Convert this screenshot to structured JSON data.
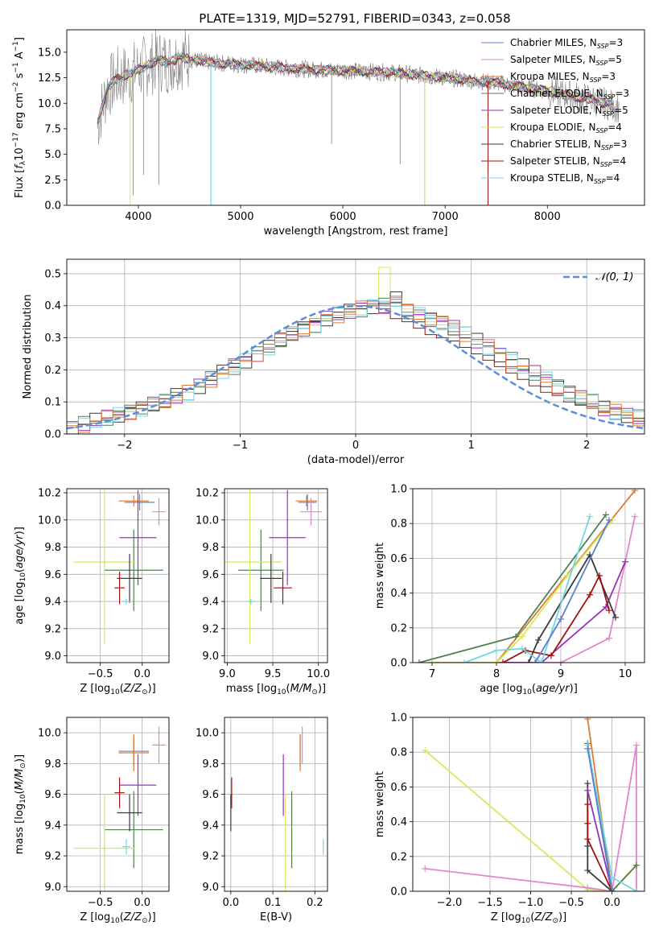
{
  "figure_title": "PLATE=1319, MJD=52791, FIBERID=0343, z=0.058",
  "colors": {
    "Chabrier MILES": "#5b7fd1",
    "Salpeter MILES": "#dd88cc",
    "Kroupa MILES": "#e07a2e",
    "Chabrier ELODIE": "#4f7f4f",
    "Salpeter ELODIE": "#9b30b8",
    "Kroupa ELODIE": "#d6e85a",
    "Chabrier STELIB": "#3a3a3a",
    "Salpeter STELIB": "#a01010",
    "Kroupa STELIB": "#6fd6e8",
    "spectrum": "#808080"
  },
  "chart_data": [
    {
      "type": "line",
      "title": "PLATE=1319, MJD=52791, FIBERID=0343, z=0.058",
      "xlabel": "wavelength [Angstrom, rest frame]",
      "ylabel": "Flux [f_λ 10^-17 erg cm^-2 s^-1 A^-1]",
      "xlim": [
        3300,
        8950
      ],
      "ylim": [
        0,
        17.2
      ],
      "xticks": [
        4000,
        5000,
        6000,
        7000,
        8000
      ],
      "yticks": [
        0.0,
        2.5,
        5.0,
        7.5,
        10.0,
        12.5,
        15.0
      ],
      "legend_position": "top-right",
      "legend": [
        {
          "name": "Chabrier MILES",
          "label": "Chabrier MILES, N",
          "sub": "SSP",
          "n": "=3"
        },
        {
          "name": "Salpeter MILES",
          "label": "Salpeter MILES, N",
          "sub": "SSP",
          "n": "=5"
        },
        {
          "name": "Kroupa MILES",
          "label": "Kroupa MILES, N",
          "sub": "SSP",
          "n": "=3"
        },
        {
          "name": "Chabrier ELODIE",
          "label": "Chabrier ELODIE, N",
          "sub": "SSP",
          "n": "=3"
        },
        {
          "name": "Salpeter ELODIE",
          "label": "Salpeter ELODIE, N",
          "sub": "SSP",
          "n": "=5"
        },
        {
          "name": "Kroupa ELODIE",
          "label": "Kroupa ELODIE, N",
          "sub": "SSP",
          "n": "=4"
        },
        {
          "name": "Chabrier STELIB",
          "label": "Chabrier STELIB, N",
          "sub": "SSP",
          "n": "=3"
        },
        {
          "name": "Salpeter STELIB",
          "label": "Salpeter STELIB, N",
          "sub": "SSP",
          "n": "=4"
        },
        {
          "name": "Kroupa STELIB",
          "label": "Kroupa STELIB, N",
          "sub": "SSP",
          "n": "=4"
        }
      ],
      "spectrum_envelope": {
        "x": [
          3600,
          3700,
          3800,
          3900,
          4000,
          4100,
          4200,
          4300,
          4400,
          4500,
          4700,
          5000,
          5500,
          6000,
          6500,
          7000,
          7500,
          8000,
          8500,
          8700
        ],
        "y": [
          8.0,
          11.5,
          12.5,
          12.8,
          13.3,
          13.8,
          14.2,
          14.0,
          14.5,
          14.3,
          14.0,
          13.8,
          13.4,
          13.2,
          13.0,
          12.5,
          12.0,
          11.2,
          10.2,
          9.6
        ]
      }
    },
    {
      "type": "histogram",
      "xlabel": "(data-model)/error",
      "ylabel": "Normed distribution",
      "xlim": [
        -2.5,
        2.5
      ],
      "ylim": [
        0,
        0.545
      ],
      "xticks": [
        -2,
        -1,
        0,
        1,
        2
      ],
      "yticks": [
        0.0,
        0.1,
        0.2,
        0.3,
        0.4,
        0.5
      ],
      "reference_curve": "𝒩(0, 1)",
      "bin_width": 0.1,
      "bins_from": -2.5,
      "series_values": {
        "Chabrier MILES": [
          0.02,
          0.03,
          0.04,
          0.05,
          0.06,
          0.07,
          0.08,
          0.09,
          0.1,
          0.12,
          0.13,
          0.15,
          0.17,
          0.19,
          0.21,
          0.23,
          0.25,
          0.27,
          0.29,
          0.31,
          0.33,
          0.34,
          0.36,
          0.37,
          0.38,
          0.39,
          0.4,
          0.4,
          0.42,
          0.38,
          0.37,
          0.36,
          0.35,
          0.33,
          0.31,
          0.29,
          0.27,
          0.25,
          0.23,
          0.21,
          0.19,
          0.17,
          0.15,
          0.13,
          0.11,
          0.1,
          0.08,
          0.07,
          0.06,
          0.05
        ],
        "Salpeter MILES": [
          0.02,
          0.03,
          0.04,
          0.05,
          0.06,
          0.07,
          0.08,
          0.09,
          0.11,
          0.12,
          0.14,
          0.15,
          0.17,
          0.19,
          0.21,
          0.23,
          0.25,
          0.27,
          0.29,
          0.31,
          0.33,
          0.35,
          0.36,
          0.38,
          0.39,
          0.39,
          0.4,
          0.41,
          0.43,
          0.4,
          0.38,
          0.37,
          0.36,
          0.34,
          0.31,
          0.29,
          0.27,
          0.25,
          0.23,
          0.21,
          0.19,
          0.17,
          0.15,
          0.13,
          0.11,
          0.1,
          0.08,
          0.07,
          0.06,
          0.05
        ],
        "Kroupa ELODIE": [
          0.02,
          0.03,
          0.04,
          0.05,
          0.06,
          0.07,
          0.08,
          0.1,
          0.11,
          0.12,
          0.13,
          0.15,
          0.17,
          0.19,
          0.22,
          0.24,
          0.26,
          0.28,
          0.3,
          0.32,
          0.33,
          0.34,
          0.36,
          0.37,
          0.38,
          0.39,
          0.41,
          0.52,
          0.4,
          0.39,
          0.37,
          0.35,
          0.34,
          0.33,
          0.32,
          0.29,
          0.27,
          0.25,
          0.23,
          0.21,
          0.19,
          0.17,
          0.15,
          0.13,
          0.12,
          0.1,
          0.08,
          0.07,
          0.06,
          0.05
        ],
        "Salpeter STELIB": [
          0.02,
          0.03,
          0.04,
          0.05,
          0.06,
          0.08,
          0.09,
          0.1,
          0.11,
          0.12,
          0.14,
          0.16,
          0.18,
          0.2,
          0.22,
          0.24,
          0.26,
          0.28,
          0.3,
          0.32,
          0.34,
          0.35,
          0.37,
          0.38,
          0.39,
          0.4,
          0.4,
          0.39,
          0.36,
          0.35,
          0.33,
          0.31,
          0.3,
          0.29,
          0.27,
          0.25,
          0.23,
          0.21,
          0.19,
          0.17,
          0.15,
          0.13,
          0.12,
          0.1,
          0.09,
          0.08,
          0.07,
          0.06,
          0.05,
          0.04
        ]
      }
    },
    {
      "type": "scatter",
      "xlabel": "Z [log10(Z/Z⊙)]",
      "ylabel": "age  [log10(age/yr)]",
      "xlim": [
        -0.9,
        0.32
      ],
      "ylim": [
        8.95,
        10.23
      ],
      "xticks": [
        -0.5,
        0.0
      ],
      "yticks": [
        9.0,
        9.2,
        9.4,
        9.6,
        9.8,
        10.0,
        10.2
      ],
      "points": [
        {
          "s": "Chabrier MILES",
          "x": -0.03,
          "y": 10.13,
          "xe": 0.18,
          "ye": 0.06
        },
        {
          "s": "Salpeter MILES",
          "x": 0.2,
          "y": 10.06,
          "xe": 0.08,
          "ye": 0.1
        },
        {
          "s": "Kroupa MILES",
          "x": -0.1,
          "y": 10.14,
          "xe": 0.18,
          "ye": 0.04
        },
        {
          "s": "Chabrier ELODIE",
          "x": -0.1,
          "y": 9.63,
          "xe": 0.35,
          "ye": 0.3
        },
        {
          "s": "Salpeter ELODIE",
          "x": -0.05,
          "y": 9.87,
          "xe": 0.22,
          "ye": 0.35
        },
        {
          "s": "Kroupa ELODIE",
          "x": -0.45,
          "y": 9.69,
          "xe": 0.37,
          "ye": 0.6
        },
        {
          "s": "Chabrier STELIB",
          "x": -0.15,
          "y": 9.57,
          "xe": 0.15,
          "ye": 0.18
        },
        {
          "s": "Salpeter STELIB",
          "x": -0.27,
          "y": 9.5,
          "xe": 0.06,
          "ye": 0.12
        },
        {
          "s": "Kroupa STELIB",
          "x": -0.19,
          "y": 9.4,
          "xe": 0.05,
          "ye": 0.02
        }
      ]
    },
    {
      "type": "scatter",
      "xlabel": "mass [log10(M/M⊙)]",
      "ylabel": "",
      "xlim": [
        8.97,
        10.1
      ],
      "ylim": [
        8.95,
        10.23
      ],
      "xticks": [
        9.0,
        9.5,
        10.0
      ],
      "yticks": [
        9.0,
        9.2,
        9.4,
        9.6,
        9.8,
        10.0,
        10.2
      ],
      "points": [
        {
          "s": "Chabrier MILES",
          "x": 9.88,
          "y": 10.13,
          "xe": 0.1,
          "ye": 0.06
        },
        {
          "s": "Salpeter MILES",
          "x": 9.92,
          "y": 10.06,
          "xe": 0.12,
          "ye": 0.1
        },
        {
          "s": "Kroupa MILES",
          "x": 9.87,
          "y": 10.14,
          "xe": 0.12,
          "ye": 0.04
        },
        {
          "s": "Chabrier ELODIE",
          "x": 9.37,
          "y": 9.63,
          "xe": 0.25,
          "ye": 0.3
        },
        {
          "s": "Salpeter ELODIE",
          "x": 9.66,
          "y": 9.87,
          "xe": 0.2,
          "ye": 0.35
        },
        {
          "s": "Kroupa ELODIE",
          "x": 9.25,
          "y": 9.69,
          "xe": 0.35,
          "ye": 0.6
        },
        {
          "s": "Chabrier STELIB",
          "x": 9.48,
          "y": 9.57,
          "xe": 0.12,
          "ye": 0.18
        },
        {
          "s": "Salpeter STELIB",
          "x": 9.61,
          "y": 9.5,
          "xe": 0.1,
          "ye": 0.12
        },
        {
          "s": "Kroupa STELIB",
          "x": 9.26,
          "y": 9.4,
          "xe": 0.05,
          "ye": 0.02
        }
      ]
    },
    {
      "type": "line",
      "xlabel": "age  [log10(age/yr)]",
      "ylabel": "mass weight",
      "xlim": [
        6.7,
        10.3
      ],
      "ylim": [
        0,
        1.0
      ],
      "xticks": [
        7,
        8,
        9,
        10
      ],
      "yticks": [
        0.0,
        0.2,
        0.4,
        0.6,
        0.8,
        1.0
      ],
      "series": [
        {
          "name": "Kroupa MILES",
          "x": [
            7.0,
            8.0,
            10.15
          ],
          "y": [
            0.0,
            0.0,
            0.99
          ]
        },
        {
          "name": "Salpeter MILES",
          "x": [
            7.0,
            9.0,
            9.75,
            10.15
          ],
          "y": [
            0.0,
            0.0,
            0.14,
            0.84
          ]
        },
        {
          "name": "Chabrier ELODIE",
          "x": [
            6.8,
            8.3,
            9.7
          ],
          "y": [
            0.0,
            0.15,
            0.85
          ]
        },
        {
          "name": "Salpeter ELODIE",
          "x": [
            7.0,
            8.7,
            9.7,
            10.0
          ],
          "y": [
            0.0,
            0.0,
            0.32,
            0.58
          ]
        },
        {
          "name": "Kroupa ELODIE",
          "x": [
            7.0,
            8.0,
            8.4,
            9.1,
            9.8
          ],
          "y": [
            0.0,
            0.0,
            0.15,
            0.5,
            0.82
          ]
        },
        {
          "name": "Chabrier STELIB",
          "x": [
            8.5,
            8.65,
            9.45,
            9.85
          ],
          "y": [
            0.0,
            0.13,
            0.62,
            0.26
          ]
        },
        {
          "name": "Salpeter STELIB",
          "x": [
            8.1,
            8.45,
            8.85,
            9.45,
            9.6,
            9.75
          ],
          "y": [
            0.0,
            0.07,
            0.04,
            0.39,
            0.5,
            0.3
          ]
        },
        {
          "name": "Kroupa STELIB",
          "x": [
            7.5,
            8.0,
            8.4,
            8.7,
            9.45
          ],
          "y": [
            0.0,
            0.07,
            0.08,
            0.0,
            0.84
          ]
        },
        {
          "name": "Chabrier MILES",
          "x": [
            8.6,
            9.0,
            9.75
          ],
          "y": [
            0.0,
            0.25,
            0.82
          ]
        }
      ]
    },
    {
      "type": "scatter",
      "xlabel": "Z [log10(Z/Z⊙)]",
      "ylabel": "mass [log10(M/M⊙)]",
      "xlim": [
        -0.9,
        0.32
      ],
      "ylim": [
        8.97,
        10.1
      ],
      "xticks": [
        -0.5,
        0.0
      ],
      "yticks": [
        9.0,
        9.2,
        9.4,
        9.6,
        9.8,
        10.0
      ],
      "points": [
        {
          "s": "Chabrier MILES",
          "x": -0.1,
          "y": 9.88,
          "xe": 0.18,
          "ye": 0.1
        },
        {
          "s": "Salpeter MILES",
          "x": 0.2,
          "y": 9.92,
          "xe": 0.08,
          "ye": 0.12
        },
        {
          "s": "Kroupa MILES",
          "x": -0.1,
          "y": 9.87,
          "xe": 0.18,
          "ye": 0.12
        },
        {
          "s": "Chabrier ELODIE",
          "x": -0.1,
          "y": 9.37,
          "xe": 0.35,
          "ye": 0.25
        },
        {
          "s": "Salpeter ELODIE",
          "x": -0.05,
          "y": 9.66,
          "xe": 0.22,
          "ye": 0.2
        },
        {
          "s": "Kroupa ELODIE",
          "x": -0.45,
          "y": 9.25,
          "xe": 0.37,
          "ye": 0.35
        },
        {
          "s": "Chabrier STELIB",
          "x": -0.15,
          "y": 9.48,
          "xe": 0.15,
          "ye": 0.12
        },
        {
          "s": "Salpeter STELIB",
          "x": -0.27,
          "y": 9.61,
          "xe": 0.06,
          "ye": 0.1
        },
        {
          "s": "Kroupa STELIB",
          "x": -0.19,
          "y": 9.26,
          "xe": 0.05,
          "ye": 0.05
        }
      ]
    },
    {
      "type": "scatter",
      "xlabel": "E(B-V)",
      "ylabel": "",
      "xlim": [
        -0.015,
        0.23
      ],
      "ylim": [
        8.97,
        10.1
      ],
      "xticks": [
        0.0,
        0.1,
        0.2
      ],
      "yticks": [
        9.0,
        9.2,
        9.4,
        9.6,
        9.8,
        10.0
      ],
      "points": [
        {
          "s": "Chabrier MILES",
          "x": 0.165,
          "y": 9.88,
          "xe": 0,
          "ye": 0.1
        },
        {
          "s": "Salpeter MILES",
          "x": 0.17,
          "y": 9.92,
          "xe": 0,
          "ye": 0.12
        },
        {
          "s": "Kroupa MILES",
          "x": 0.165,
          "y": 9.87,
          "xe": 0,
          "ye": 0.12
        },
        {
          "s": "Chabrier ELODIE",
          "x": 0.145,
          "y": 9.37,
          "xe": 0,
          "ye": 0.25
        },
        {
          "s": "Salpeter ELODIE",
          "x": 0.125,
          "y": 9.66,
          "xe": 0,
          "ye": 0.2
        },
        {
          "s": "Kroupa ELODIE",
          "x": 0.13,
          "y": 9.25,
          "xe": 0,
          "ye": 0.35
        },
        {
          "s": "Chabrier STELIB",
          "x": 0.0,
          "y": 9.48,
          "xe": 0,
          "ye": 0.12
        },
        {
          "s": "Salpeter STELIB",
          "x": 0.002,
          "y": 9.61,
          "xe": 0,
          "ye": 0.1
        },
        {
          "s": "Kroupa STELIB",
          "x": 0.22,
          "y": 9.26,
          "xe": 0,
          "ye": 0.05
        }
      ]
    },
    {
      "type": "line",
      "xlabel": "Z [log10(Z/Z⊙)]",
      "ylabel": "mass weight",
      "xlim": [
        -2.45,
        0.4
      ],
      "ylim": [
        0,
        1.0
      ],
      "xticks": [
        -2.0,
        -1.5,
        -1.0,
        -0.5,
        0.0
      ],
      "yticks": [
        0.0,
        0.2,
        0.4,
        0.6,
        0.8,
        1.0
      ],
      "series": [
        {
          "name": "Kroupa ELODIE",
          "x": [
            -2.3,
            -0.3,
            0.0,
            0.3,
            0.3
          ],
          "y": [
            0.81,
            0.01,
            0.0,
            0.15,
            0.0
          ]
        },
        {
          "name": "Salpeter MILES",
          "x": [
            -2.3,
            -0.3,
            0.0,
            0.3,
            0.3
          ],
          "y": [
            0.13,
            0.02,
            0.0,
            0.84,
            0.0
          ]
        },
        {
          "name": "Kroupa MILES",
          "x": [
            -0.3,
            0.0
          ],
          "y": [
            0.99,
            0.0
          ]
        },
        {
          "name": "Chabrier ELODIE",
          "x": [
            -0.3,
            0.0,
            0.3
          ],
          "y": [
            0.85,
            0.0,
            0.15
          ]
        },
        {
          "name": "Chabrier STELIB",
          "x": [
            -0.3,
            -0.3,
            -0.3,
            0.0
          ],
          "y": [
            0.62,
            0.26,
            0.12,
            0.0
          ]
        },
        {
          "name": "Salpeter ELODIE",
          "x": [
            -0.3,
            0.0
          ],
          "y": [
            0.58,
            0.0
          ]
        },
        {
          "name": "Salpeter STELIB",
          "x": [
            -0.3,
            -0.3,
            -0.3,
            0.0
          ],
          "y": [
            0.5,
            0.39,
            0.3,
            0.0
          ]
        },
        {
          "name": "Kroupa STELIB",
          "x": [
            -0.3,
            0.0,
            0.3
          ],
          "y": [
            0.84,
            0.08,
            0.0
          ]
        },
        {
          "name": "Chabrier MILES",
          "x": [
            -0.3,
            0.0
          ],
          "y": [
            0.82,
            0.0
          ]
        }
      ]
    }
  ]
}
